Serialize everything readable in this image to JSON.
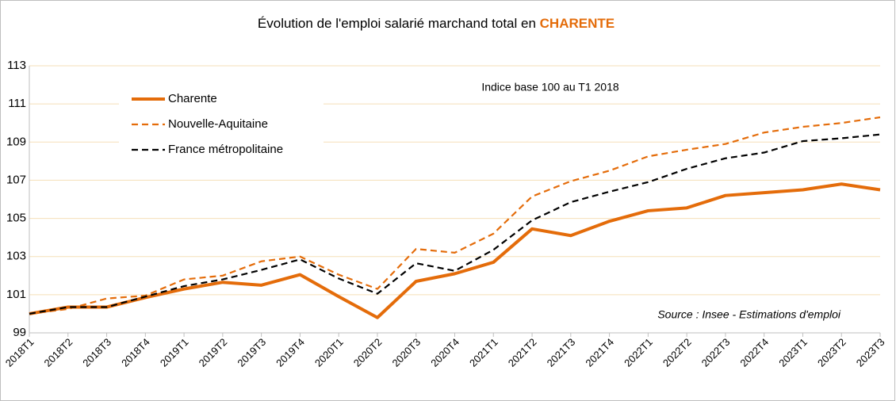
{
  "chart_data": {
    "type": "line",
    "title": "Évolution de l'emploi salarié marchand total en",
    "title_highlight": "CHARENTE",
    "annotations": [
      "Indice base 100 au T1 2018",
      "Source : Insee - Estimations d'emploi"
    ],
    "categories": [
      "2018T1",
      "2018T2",
      "2018T3",
      "2018T4",
      "2019T1",
      "2019T2",
      "2019T3",
      "2019T4",
      "2020T1",
      "2020T2",
      "2020T3",
      "2020T4",
      "2021T1",
      "2021T2",
      "2021T3",
      "2021T4",
      "2022T1",
      "2022T2",
      "2022T3",
      "2022T4",
      "2023T1",
      "2023T2",
      "2023T3"
    ],
    "series": [
      {
        "name": "Charente",
        "color": "#e46c0a",
        "dash": "solid",
        "values": [
          100,
          100.35,
          100.35,
          100.85,
          101.3,
          101.65,
          101.5,
          102.05,
          100.9,
          99.8,
          101.7,
          102.1,
          102.7,
          104.45,
          104.1,
          104.85,
          105.4,
          105.55,
          106.2,
          106.35,
          106.5,
          106.8,
          106.5
        ]
      },
      {
        "name": "Nouvelle-Aquitaine",
        "color": "#e46c0a",
        "dash": "dashed",
        "values": [
          100,
          100.25,
          100.8,
          100.95,
          101.8,
          102.0,
          102.75,
          103.0,
          102.05,
          101.3,
          103.4,
          103.2,
          104.2,
          106.15,
          106.95,
          107.5,
          108.25,
          108.6,
          108.9,
          109.5,
          109.8,
          110.0,
          110.3
        ]
      },
      {
        "name": "France métropolitaine",
        "color": "#000000",
        "dash": "dashed",
        "values": [
          100,
          100.35,
          100.35,
          100.9,
          101.45,
          101.8,
          102.3,
          102.85,
          101.85,
          101.05,
          102.65,
          102.25,
          103.35,
          104.9,
          105.85,
          106.4,
          106.9,
          107.6,
          108.15,
          108.45,
          109.05,
          109.2,
          109.4
        ]
      }
    ],
    "ylim": [
      99,
      113
    ],
    "yticks": [
      99,
      101,
      103,
      105,
      107,
      109,
      111,
      113
    ],
    "grid": true
  }
}
